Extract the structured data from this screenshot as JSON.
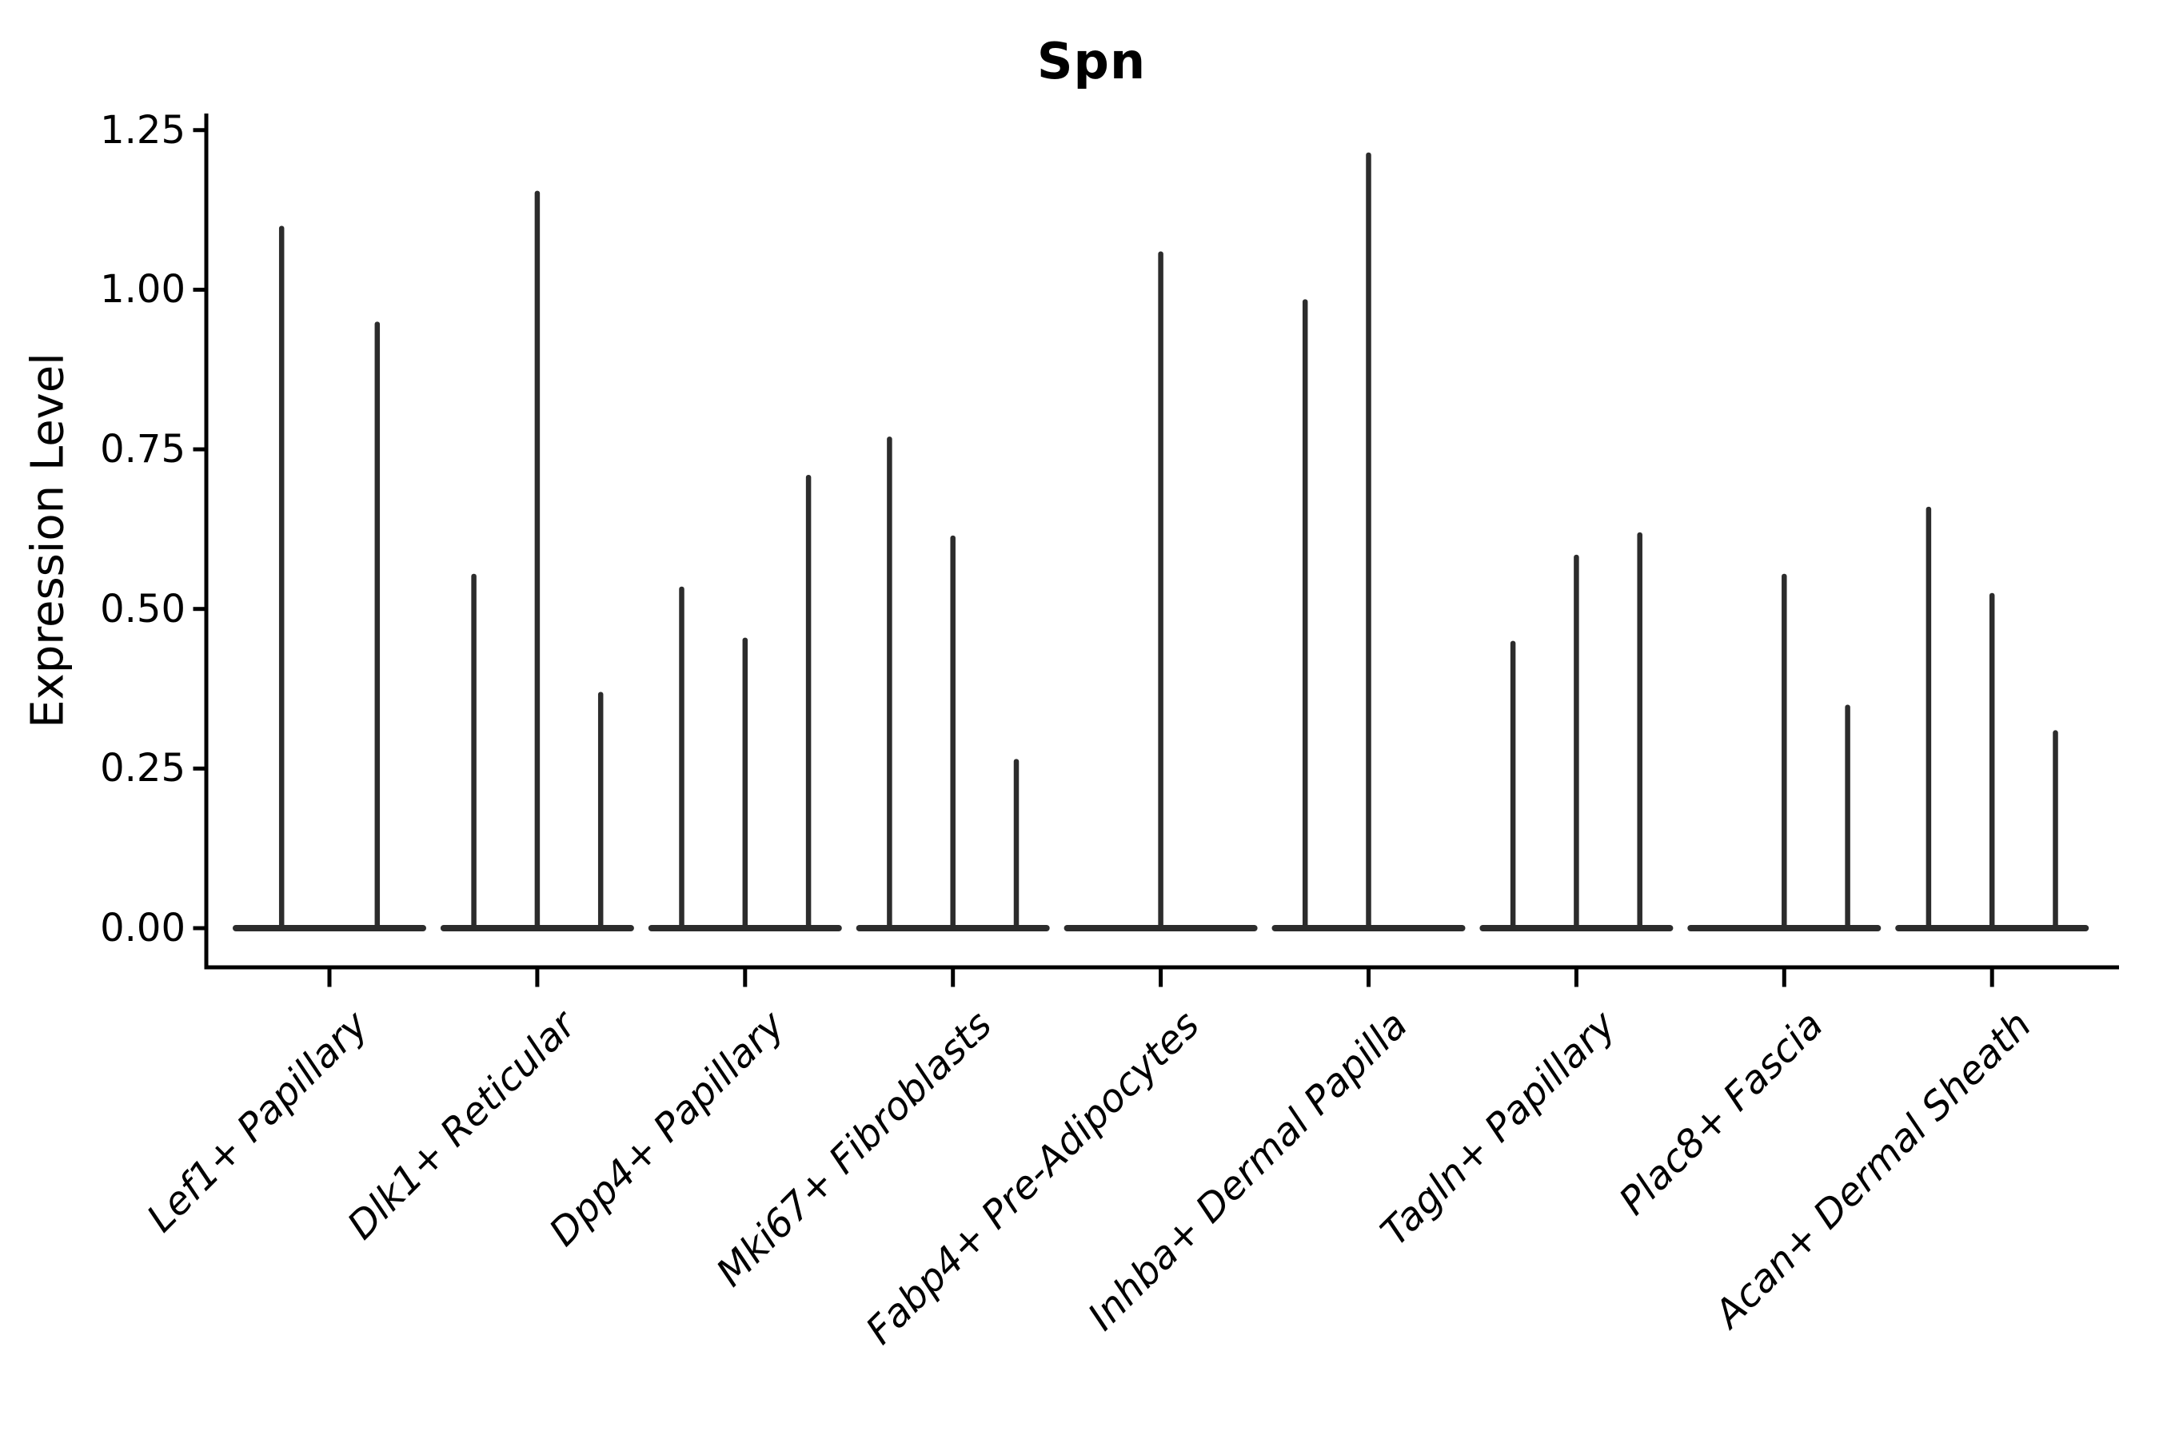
{
  "title": "Spn",
  "y_axis_title": "Expression Level",
  "chart_data": {
    "type": "violin",
    "title": "Spn",
    "xlabel": "",
    "ylabel": "Expression Level",
    "ylim": [
      0,
      1.3375
    ],
    "yticks": [
      {
        "value": 0.0,
        "label": "0.00"
      },
      {
        "value": 0.25,
        "label": "0.25"
      },
      {
        "value": 0.5,
        "label": "0.50"
      },
      {
        "value": 0.75,
        "label": "0.75"
      },
      {
        "value": 1.0,
        "label": "1.00"
      },
      {
        "value": 1.25,
        "label": "1.25"
      }
    ],
    "grid": false,
    "legend": "none",
    "style_note": "Seurat-style stacked violin plot; violins collapse to flat baselines at 0 with thin density spikes",
    "categories": [
      "Lef1+ Papillary",
      "Dlk1+ Reticular",
      "Dpp4+ Papillary",
      "Mki67+ Fibroblasts",
      "Fabp4+ Pre-Adipocytes",
      "Inhba+ Dermal Papilla",
      "Tagln+ Papillary",
      "Plac8+ Fascia",
      "Acan+ Dermal Sheath"
    ],
    "groups": [
      {
        "category": "Lef1+ Papillary",
        "violins": [
          {
            "x_offset": -0.23,
            "peak": 1.1
          },
          {
            "x_offset": 0.23,
            "peak": 0.95
          }
        ]
      },
      {
        "category": "Dlk1+ Reticular",
        "violins": [
          {
            "x_offset": -0.305,
            "peak": 0.555
          },
          {
            "x_offset": 0.0,
            "peak": 1.155
          },
          {
            "x_offset": 0.305,
            "peak": 0.37
          }
        ]
      },
      {
        "category": "Dpp4+ Papillary",
        "violins": [
          {
            "x_offset": -0.305,
            "peak": 0.535
          },
          {
            "x_offset": 0.0,
            "peak": 0.455
          },
          {
            "x_offset": 0.305,
            "peak": 0.71
          }
        ]
      },
      {
        "category": "Mki67+ Fibroblasts",
        "violins": [
          {
            "x_offset": -0.305,
            "peak": 0.77
          },
          {
            "x_offset": 0.0,
            "peak": 0.615
          },
          {
            "x_offset": 0.305,
            "peak": 0.265
          }
        ]
      },
      {
        "category": "Fabp4+ Pre-Adipocytes",
        "violins": [
          {
            "x_offset": 0.0,
            "peak": 1.06
          }
        ]
      },
      {
        "category": "Inhba+ Dermal Papilla",
        "violins": [
          {
            "x_offset": -0.305,
            "peak": 0.985
          },
          {
            "x_offset": 0.0,
            "peak": 1.215
          },
          {
            "x_offset": 0.305,
            "peak": 0.0
          }
        ]
      },
      {
        "category": "Tagln+ Papillary",
        "violins": [
          {
            "x_offset": -0.305,
            "peak": 0.45
          },
          {
            "x_offset": 0.0,
            "peak": 0.585
          },
          {
            "x_offset": 0.305,
            "peak": 0.62
          }
        ]
      },
      {
        "category": "Plac8+ Fascia",
        "violins": [
          {
            "x_offset": -0.305,
            "peak": 0.0
          },
          {
            "x_offset": 0.0,
            "peak": 0.555
          },
          {
            "x_offset": 0.305,
            "peak": 0.35
          }
        ]
      },
      {
        "category": "Acan+ Dermal Sheath",
        "violins": [
          {
            "x_offset": -0.305,
            "peak": 0.66
          },
          {
            "x_offset": 0.0,
            "peak": 0.525
          },
          {
            "x_offset": 0.305,
            "peak": 0.31
          }
        ]
      }
    ],
    "colors": {
      "violin": "#2c2c2c",
      "axis": "#000000",
      "text": "#000000",
      "background": "#ffffff"
    }
  }
}
